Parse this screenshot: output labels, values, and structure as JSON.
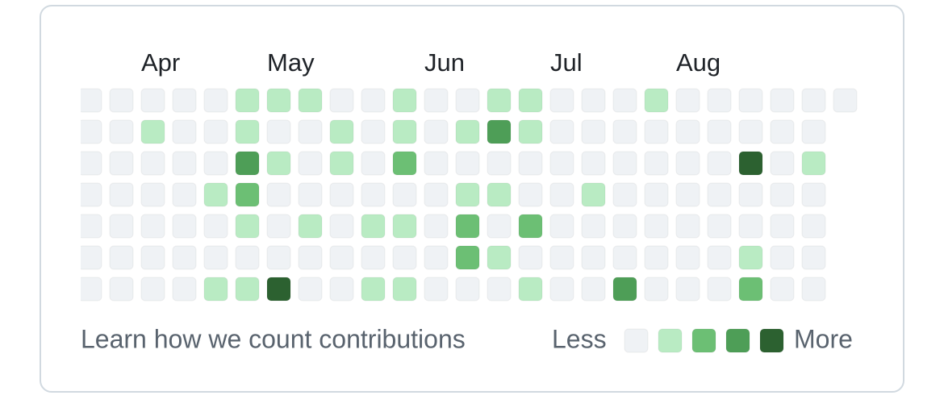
{
  "months": [
    "Apr",
    "May",
    "Jun",
    "Jul",
    "Aug"
  ],
  "weeks": [
    [
      0,
      0,
      0,
      0,
      0,
      0,
      0
    ],
    [
      0,
      0,
      0,
      0,
      0,
      0,
      0
    ],
    [
      0,
      1,
      0,
      0,
      0,
      0,
      0
    ],
    [
      0,
      0,
      0,
      0,
      0,
      0,
      0
    ],
    [
      0,
      0,
      0,
      1,
      0,
      0,
      1
    ],
    [
      1,
      1,
      3,
      2,
      1,
      0,
      1
    ],
    [
      1,
      0,
      1,
      0,
      0,
      0,
      4
    ],
    [
      1,
      0,
      0,
      0,
      1,
      0,
      0
    ],
    [
      0,
      1,
      1,
      0,
      0,
      0,
      0
    ],
    [
      0,
      0,
      0,
      0,
      1,
      0,
      1
    ],
    [
      1,
      1,
      2,
      0,
      1,
      0,
      1
    ],
    [
      0,
      0,
      0,
      0,
      0,
      0,
      0
    ],
    [
      0,
      1,
      0,
      1,
      2,
      2,
      0
    ],
    [
      1,
      3,
      0,
      1,
      0,
      1,
      0
    ],
    [
      1,
      1,
      0,
      0,
      2,
      0,
      1
    ],
    [
      0,
      0,
      0,
      0,
      0,
      0,
      0
    ],
    [
      0,
      0,
      0,
      1,
      0,
      0,
      0
    ],
    [
      0,
      0,
      0,
      0,
      0,
      0,
      3
    ],
    [
      1,
      0,
      0,
      0,
      0,
      0,
      0
    ],
    [
      0,
      0,
      0,
      0,
      0,
      0,
      0
    ],
    [
      0,
      0,
      0,
      0,
      0,
      0,
      0
    ],
    [
      0,
      0,
      4,
      0,
      0,
      1,
      2
    ],
    [
      0,
      0,
      0,
      0,
      0,
      0,
      0
    ],
    [
      0,
      0,
      1,
      0,
      0,
      0,
      0
    ],
    [
      0
    ]
  ],
  "level_colors": [
    "#eff2f5",
    "#b9ebc3",
    "#6cbf74",
    "#4e9e57",
    "#2c6130"
  ],
  "footer": {
    "link": "Learn how we count contributions",
    "less": "Less",
    "more": "More"
  }
}
